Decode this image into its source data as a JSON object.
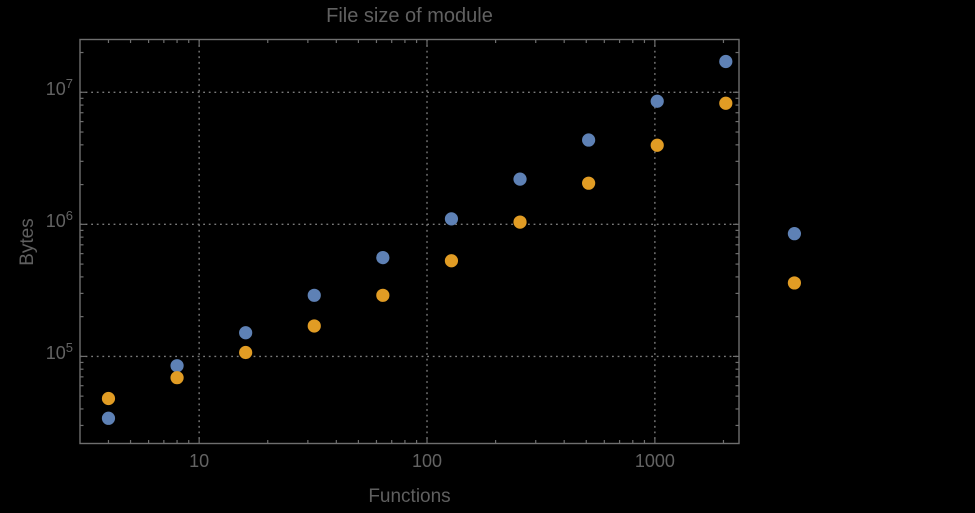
{
  "colors": {
    "background": "#000000",
    "frame": "#6e6e6e",
    "grid": "#7a7a7a",
    "tick": "#6e6e6e",
    "text": "#5f5f5f",
    "series_blue": "#5e81b5",
    "series_orange": "#e19c24"
  },
  "axes": {
    "x_tick_labels": [
      "10",
      "100",
      "1000"
    ],
    "y_tick_labels": [
      {
        "base": "10",
        "exp": "5"
      },
      {
        "base": "10",
        "exp": "6"
      },
      {
        "base": "10",
        "exp": "7"
      }
    ]
  },
  "chart_data": {
    "type": "scatter",
    "title": "File size of module",
    "xlabel": "Functions",
    "ylabel": "Bytes",
    "x_scale": "log",
    "y_scale": "log",
    "grid": "dotted gray lines at decade ticks, frame on all four sides",
    "legend": "none (two unlabeled point series, blue and orange)",
    "x": [
      4,
      8,
      16,
      32,
      64,
      128,
      256,
      512,
      1024,
      2048,
      4096
    ],
    "series": [
      {
        "name": "blue",
        "color": "#5e81b5",
        "values": [
          34000,
          85000,
          151000,
          290000,
          560000,
          1100000,
          2200000,
          4350000,
          8550000,
          17100000,
          850000
        ]
      },
      {
        "name": "orange",
        "color": "#e19c24",
        "values": [
          48000,
          69000,
          107000,
          170000,
          290000,
          530000,
          1040000,
          2050000,
          3970000,
          8260000,
          360000
        ]
      }
    ],
    "x_ticks": {
      "major": [
        10,
        100,
        1000
      ],
      "minor": [
        4,
        5,
        6,
        7,
        8,
        9,
        20,
        30,
        40,
        50,
        60,
        70,
        80,
        90,
        200,
        300,
        400,
        500,
        600,
        700,
        800,
        900,
        2000
      ]
    },
    "y_ticks": {
      "major": [
        100000,
        1000000,
        10000000
      ],
      "minor": [
        30000,
        40000,
        50000,
        60000,
        70000,
        80000,
        90000,
        200000,
        300000,
        400000,
        500000,
        600000,
        700000,
        800000,
        900000,
        2000000,
        3000000,
        4000000,
        5000000,
        6000000,
        7000000,
        8000000,
        9000000,
        20000000
      ]
    },
    "xlim": [
      3.0,
      2340
    ],
    "ylim": [
      21900,
      25100000
    ],
    "note": "last point pair (x=4096) is rendered outside the right edge of the plot frame"
  }
}
